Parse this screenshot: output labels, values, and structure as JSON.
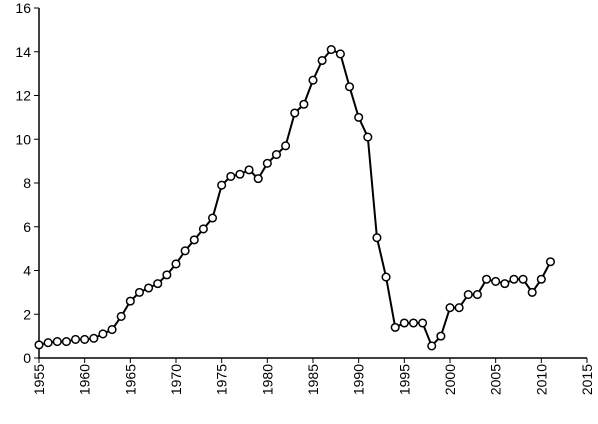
{
  "chart_data": {
    "type": "line",
    "x": [
      1955,
      1956,
      1957,
      1958,
      1959,
      1960,
      1961,
      1962,
      1963,
      1964,
      1965,
      1966,
      1967,
      1968,
      1969,
      1970,
      1971,
      1972,
      1973,
      1974,
      1975,
      1976,
      1977,
      1978,
      1979,
      1980,
      1981,
      1982,
      1983,
      1984,
      1985,
      1986,
      1987,
      1988,
      1989,
      1990,
      1991,
      1992,
      1993,
      1994,
      1995,
      1996,
      1997,
      1998,
      1999,
      2000,
      2001,
      2002,
      2003,
      2004,
      2005,
      2006,
      2007,
      2008,
      2009,
      2010,
      2011
    ],
    "series": [
      {
        "color": "#000000",
        "marker_fill": "#ffffff",
        "values": [
          0.6,
          0.7,
          0.75,
          0.75,
          0.85,
          0.85,
          0.9,
          1.1,
          1.3,
          1.9,
          2.6,
          3.0,
          3.2,
          3.4,
          3.8,
          4.3,
          4.9,
          5.4,
          5.9,
          6.4,
          7.9,
          8.3,
          8.4,
          8.6,
          8.2,
          8.9,
          9.3,
          9.7,
          11.2,
          11.6,
          12.7,
          13.6,
          14.1,
          13.9,
          12.4,
          11.0,
          10.1,
          5.5,
          3.7,
          1.4,
          1.6,
          1.6,
          1.6,
          0.55,
          1.0,
          2.3,
          2.3,
          2.9,
          2.9,
          3.6,
          3.5,
          3.4,
          3.6,
          3.6,
          3.0,
          3.6,
          4.4
        ]
      }
    ],
    "xlim": [
      1955,
      2015
    ],
    "xticks": [
      1955,
      1960,
      1965,
      1970,
      1975,
      1980,
      1985,
      1990,
      1995,
      2000,
      2005,
      2010,
      2015
    ],
    "ylim": [
      0,
      16
    ],
    "yticks": [
      0,
      2,
      4,
      6,
      8,
      10,
      12,
      14,
      16
    ],
    "grid": false
  }
}
